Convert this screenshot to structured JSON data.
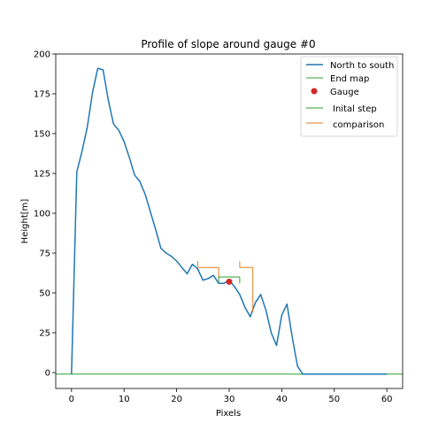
{
  "chart_data": {
    "type": "line",
    "title": "Profile of slope around gauge #0",
    "xlabel": "Pixels",
    "ylabel": "Height[m]",
    "xlim": [
      -3,
      63
    ],
    "ylim": [
      -10,
      200
    ],
    "xticks": [
      0,
      10,
      20,
      30,
      40,
      50,
      60
    ],
    "yticks": [
      0,
      25,
      50,
      75,
      100,
      125,
      150,
      175,
      200
    ],
    "grid": false,
    "legend_position": "top-right",
    "series": [
      {
        "name": "North to south",
        "color": "#1f77b4",
        "x": [
          0,
          1,
          2,
          3,
          4,
          5,
          6,
          7,
          8,
          9,
          10,
          11,
          12,
          13,
          14,
          15,
          16,
          17,
          18,
          19,
          20,
          21,
          22,
          23,
          24,
          25,
          26,
          27,
          28,
          29,
          30,
          31,
          32,
          33,
          34,
          35,
          36,
          37,
          38,
          39,
          40,
          41,
          42,
          43,
          44,
          45,
          46,
          47,
          48,
          49,
          50,
          51,
          52,
          53,
          54,
          55,
          56,
          57,
          58,
          59,
          60
        ],
        "y": [
          -1,
          126,
          139,
          154,
          176,
          191,
          190,
          171,
          156,
          152,
          145,
          135,
          124,
          120,
          112,
          101,
          90,
          78,
          75,
          73,
          70,
          66,
          62,
          68,
          65,
          58,
          59,
          61,
          56,
          56,
          58,
          54,
          49,
          41,
          35,
          44,
          49,
          39,
          25,
          17,
          36,
          43,
          22,
          4,
          -1,
          -1,
          -1,
          -1,
          -1,
          -1,
          -1,
          -1,
          -1,
          -1,
          -1,
          -1,
          -1,
          -1,
          -1,
          -1,
          -1
        ]
      },
      {
        "name": "End map",
        "color": "#2ca02c",
        "x": [
          -3,
          63
        ],
        "y": [
          -1,
          -1
        ]
      }
    ],
    "gauge": {
      "name": "Gauge",
      "color": "#d62728",
      "x": 30,
      "y": 57
    },
    "initial_step": {
      "name": "Inital step",
      "color": "#2ca02c",
      "x": [
        28,
        32
      ],
      "y": 60,
      "baseline": 56
    },
    "comparison": {
      "name": "comparison",
      "color": "#e07b1a",
      "segments": [
        {
          "x": [
            24,
            28
          ],
          "y": 66,
          "left_top": 70,
          "right_bottom": 59
        },
        {
          "x": [
            32,
            34.5
          ],
          "y": 66,
          "left_top": 70,
          "right_bottom": 38
        }
      ]
    }
  }
}
